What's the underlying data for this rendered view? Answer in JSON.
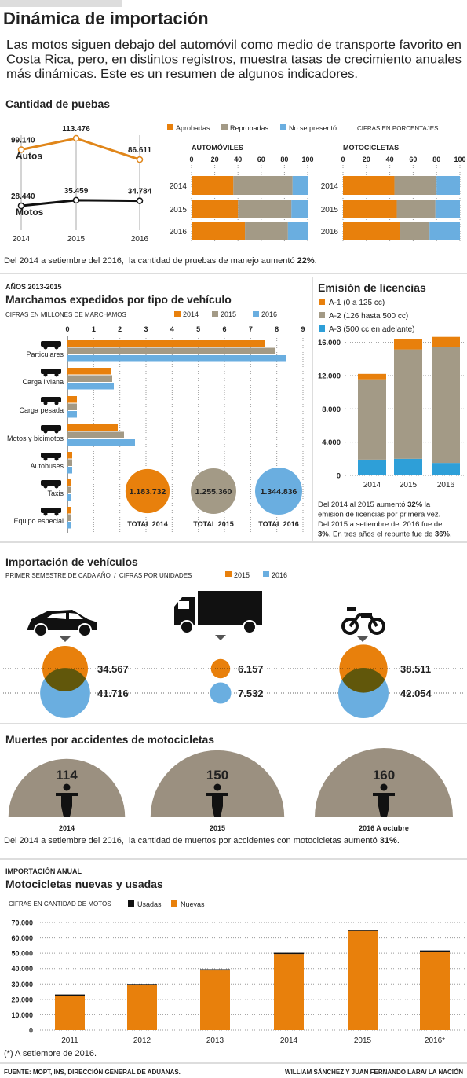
{
  "header": {
    "title": "Dinámica de importación",
    "intro": [
      "Las motos siguen debajo del automóvil como medio de transporte favorito en",
      "Costa Rica, pero, en distintos registros, muestra tasas de crecimiento anuales",
      "más dinámicas. Este es un resumen de algunos indicadores."
    ]
  },
  "chart_data": [
    {
      "type": "line",
      "title": "Cantidad de puebas",
      "categories": [
        "2014",
        "2015",
        "2016"
      ],
      "series": [
        {
          "name": "Autos",
          "color": "#e0861a",
          "values": [
            99140,
            113476,
            86611
          ],
          "value_labels": [
            "99.140",
            "113.476",
            "86.611"
          ]
        },
        {
          "name": "Motos",
          "color": "#111111",
          "values": [
            28440,
            35459,
            34784
          ],
          "value_labels": [
            "28.440",
            "35.459",
            "34.784"
          ]
        }
      ],
      "note": [
        {
          "text": "Del 2014 a setiembre del 2016,  la cantidad de pruebas de manejo aumentó "
        },
        {
          "text": "22%",
          "bold": true
        },
        {
          "text": "."
        }
      ]
    },
    {
      "type": "stackedbar",
      "note": "CIFRAS EN PORCENTAJES",
      "categories": [
        "2014",
        "2015",
        "2016"
      ],
      "xlim": [
        0,
        100
      ],
      "xticks": [
        0,
        20,
        40,
        60,
        80,
        100
      ],
      "series": [
        {
          "name": "Aprobadas",
          "color": "#e8800c"
        },
        {
          "name": "Reprobadas",
          "color": "#a39a86"
        },
        {
          "name": "No se presentó",
          "color": "#6aaee0"
        }
      ],
      "panels": [
        {
          "title": "AUTOMÓVILES",
          "values": [
            [
              36,
              40,
              46
            ],
            [
              51,
              46,
              37
            ],
            [
              13,
              14,
              17
            ]
          ]
        },
        {
          "title": "MOTOCICLETAS",
          "values": [
            [
              44,
              46,
              49
            ],
            [
              36,
              33,
              25
            ],
            [
              20,
              21,
              26
            ]
          ]
        }
      ]
    },
    {
      "type": "groupedbar",
      "supertitle": "AÑOS 2013-2015",
      "title": "Marchamos expedidos por tipo de vehículo",
      "subtitle": "CIFRAS EN MILLONES DE MARCHAMOS",
      "categories": [
        "Particulares",
        "Carga liviana",
        "Carga pesada",
        "Motos y bicimotos",
        "Autobuses",
        "Taxis",
        "Equipo especial"
      ],
      "xlim": [
        0,
        9
      ],
      "xticks": [
        0,
        1,
        2,
        3,
        4,
        5,
        6,
        7,
        8,
        9
      ],
      "series": [
        {
          "name": "2014",
          "color": "#e8800c",
          "values": [
            7.56,
            1.65,
            0.36,
            1.92,
            0.18,
            0.12,
            0.15
          ]
        },
        {
          "name": "2015",
          "color": "#a39a86",
          "values": [
            7.92,
            1.71,
            0.36,
            2.16,
            0.18,
            0.12,
            0.15
          ]
        },
        {
          "name": "2016",
          "color": "#6aaee0",
          "values": [
            8.34,
            1.77,
            0.36,
            2.58,
            0.18,
            0.12,
            0.15
          ]
        }
      ],
      "totals": {
        "labels": [
          "TOTAL 2014",
          "TOTAL 2015",
          "TOTAL 2016"
        ],
        "values": [
          1183732,
          1255360,
          1344836
        ],
        "value_labels": [
          "1.183.732",
          "1.255.360",
          "1.344.836"
        ],
        "colors": [
          "#e8800c",
          "#a39a86",
          "#6aaee0"
        ]
      }
    },
    {
      "type": "column",
      "title": "Emisión de licencias",
      "categories": [
        "2014",
        "2015",
        "2016"
      ],
      "ylim": [
        0,
        17000
      ],
      "yticks": [
        0,
        {
          "value": 4000,
          "label": "4.000"
        },
        {
          "value": 8000,
          "label": "8.000"
        },
        {
          "value": 12000,
          "label": "12.000"
        },
        {
          "value": 16000,
          "label": "16.000"
        }
      ],
      "series": [
        {
          "name": "A-1 (0 a 125 cc)",
          "color": "#e8800c",
          "values": [
            650,
            1230,
            1250
          ]
        },
        {
          "name": "A-2 (126 hasta 500 cc)",
          "color": "#a39a86",
          "values": [
            9650,
            13150,
            13900
          ]
        },
        {
          "name": "A-3 (500 cc en adelante)",
          "color": "#2e9fd8",
          "values": [
            1900,
            2000,
            1500
          ]
        }
      ],
      "note": [
        [
          {
            "text": "Del 2014 al 2015 aumentó "
          },
          {
            "text": "32%",
            "bold": true
          },
          {
            "text": " la"
          }
        ],
        [
          {
            "text": "emisión de licencias por primera vez."
          }
        ],
        [
          {
            "text": "Del 2015 a setiembre del 2016 fue de"
          }
        ],
        [
          {
            "text": "3%",
            "bold": true
          },
          {
            "text": ". En tres años el repunte fue de "
          },
          {
            "text": "36%",
            "bold": true
          },
          {
            "text": "."
          }
        ]
      ]
    },
    {
      "type": "bubble",
      "title": "Importación de vehículos",
      "subtitle": "PRIMER SEMESTRE DE CADA AÑO  /  CIFRAS POR UNIDADES",
      "categories": [
        null,
        null,
        null
      ],
      "series": [
        {
          "name": "2015",
          "color": "#e8800c",
          "values": [
            34567,
            6157,
            38511
          ],
          "value_labels": [
            "34.567",
            "6.157",
            "38.511"
          ]
        },
        {
          "name": "2016",
          "color": "#6aaee0",
          "values": [
            41716,
            7532,
            42054
          ],
          "value_labels": [
            "41.716",
            "7.532",
            "42.054"
          ]
        }
      ]
    },
    {
      "type": "dome",
      "title": "Muertes por accidentes de motocicletas",
      "categories": [
        "2014",
        "2015",
        "2016 A octubre"
      ],
      "values": [
        114,
        150,
        160
      ],
      "color": "#9b9080",
      "note": [
        {
          "text": "Del 2014 a setiembre del 2016,  la cantidad de muertos por accidentes con motocicletas aumentó "
        },
        {
          "text": "31%",
          "bold": true
        },
        {
          "text": "."
        }
      ]
    },
    {
      "type": "column",
      "supertitle": "IMPORTACIÓN ANUAL",
      "title": "Motocicletas nuevas y usadas",
      "subtitle": "CIFRAS EN CANTIDAD DE MOTOS",
      "categories": [
        "2011",
        "2012",
        "2013",
        "2014",
        "2015",
        "2016*"
      ],
      "ylim": [
        0,
        70000
      ],
      "yticks": [
        0,
        {
          "value": 10000,
          "label": "10.000"
        },
        {
          "value": 20000,
          "label": "20.000"
        },
        {
          "value": 30000,
          "label": "30.000"
        },
        {
          "value": 40000,
          "label": "40.000"
        },
        {
          "value": 50000,
          "label": "50.000"
        },
        {
          "value": 60000,
          "label": "60.000"
        },
        {
          "value": 70000,
          "label": "70.000"
        }
      ],
      "series": [
        {
          "name": "Usadas",
          "color": "#111111",
          "values": [
            800,
            800,
            800,
            800,
            800,
            800
          ]
        },
        {
          "name": "Nuevas",
          "color": "#e8800c",
          "values": [
            22400,
            29200,
            38800,
            49500,
            64500,
            51000
          ]
        }
      ],
      "footnote": "(*) A setiembre de 2016."
    }
  ],
  "footer": {
    "source": "FUENTE: MOPT, INS, DIRECCIÓN GENERAL DE ADUANAS.",
    "credit": "WILLIAM SÁNCHEZ Y JUAN FERNANDO LARA/ LA NACIÓN"
  }
}
